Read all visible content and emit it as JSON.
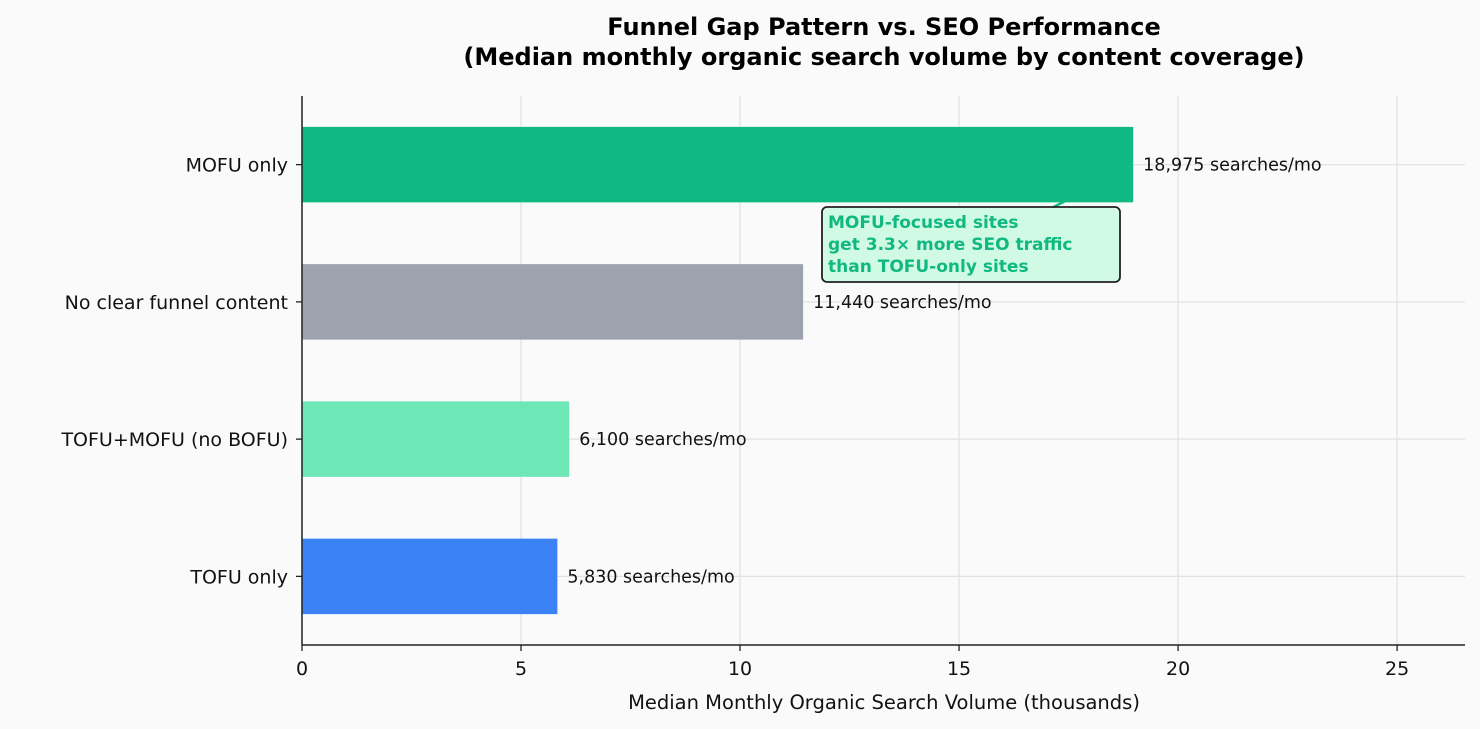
{
  "chart_data": {
    "type": "bar",
    "orientation": "horizontal",
    "title": "Funnel Gap Pattern vs. SEO Performance",
    "subtitle": "(Median monthly organic search volume by content coverage)",
    "xlabel": "Median Monthly Organic Search Volume (thousands)",
    "ylabel": "",
    "xlim": [
      0,
      26.55
    ],
    "xticks": [
      0,
      5,
      10,
      15,
      20,
      25
    ],
    "grid": true,
    "categories": [
      "MOFU only",
      "No clear funnel content",
      "TOFU+MOFU (no BOFU)",
      "TOFU only"
    ],
    "values": [
      18.975,
      11.44,
      6.1,
      5.83
    ],
    "data_labels": [
      "18,975 searches/mo",
      "11,440 searches/mo",
      "6,100 searches/mo",
      "5,830 searches/mo"
    ],
    "colors": [
      "#10b981",
      "#9ca3af",
      "#6ee7b7",
      "#3b82f6"
    ],
    "annotation": {
      "lines": [
        "MOFU-focused sites",
        "get 3.3× more SEO traffic",
        "than TOFU-only sites"
      ],
      "target_category": "MOFU only",
      "target_value": 17,
      "text_color": "#10b981",
      "box_color": "#d1fae5",
      "border_color": "#222222"
    }
  }
}
